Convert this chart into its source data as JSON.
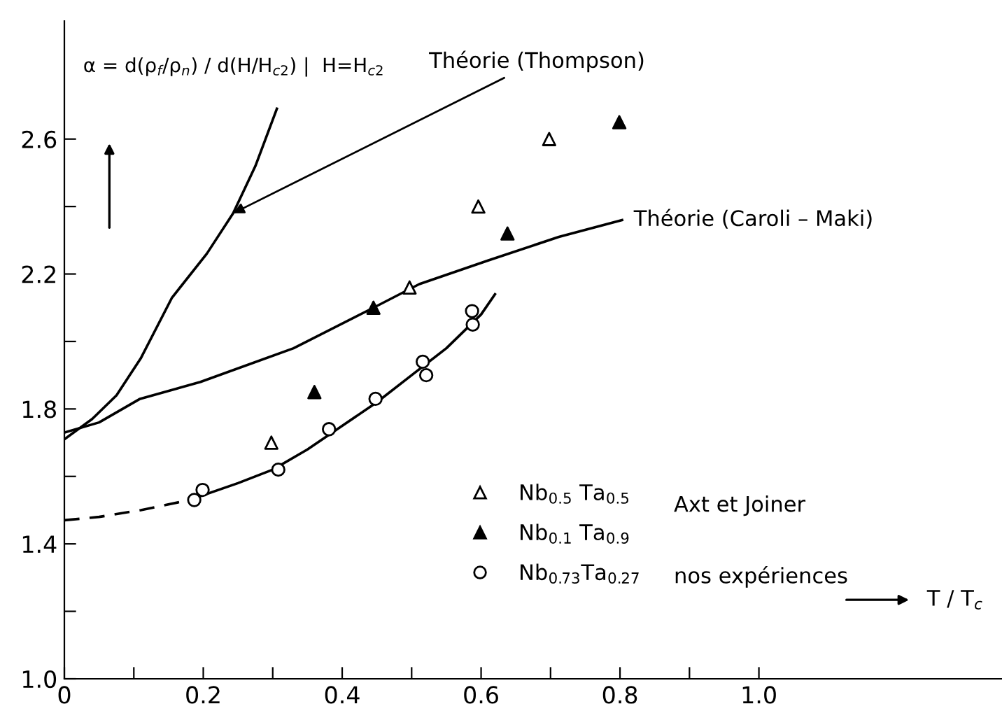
{
  "chart_data": {
    "type": "scatter",
    "ylabel": "α = d(ρ$_{f}$/ρ$_{n}$) / d(H/H$_{c2}$) |  H=H$_{c2}$",
    "xlabel": "T / T$_{c}$",
    "xlim": [
      0,
      1.35
    ],
    "ylim": [
      1.0,
      2.95
    ],
    "xticks": [
      0,
      {
        "value": 0.1,
        "label": null
      },
      {
        "value": 0.2,
        "label": "0.2"
      },
      {
        "value": 0.3,
        "label": null
      },
      {
        "value": 0.4,
        "label": "0.4"
      },
      {
        "value": 0.5,
        "label": null
      },
      {
        "value": 0.6,
        "label": "0.6"
      },
      {
        "value": 0.7,
        "label": null
      },
      {
        "value": 0.8,
        "label": "0.8"
      },
      {
        "value": 0.9,
        "label": null
      },
      {
        "value": 1.0,
        "label": "1.0"
      }
    ],
    "yticks": [
      {
        "value": 1.0,
        "label": "1.0"
      },
      {
        "value": 1.2,
        "label": null
      },
      {
        "value": 1.4,
        "label": "1.4"
      },
      {
        "value": 1.6,
        "label": null
      },
      {
        "value": 1.8,
        "label": "1.8"
      },
      {
        "value": 2.0,
        "label": null
      },
      {
        "value": 2.2,
        "label": "2.2"
      },
      {
        "value": 2.4,
        "label": null
      },
      {
        "value": 2.6,
        "label": "2.6"
      }
    ],
    "grid": false,
    "legend": "right",
    "series": [
      {
        "type": "line",
        "color": "#000000",
        "line_style": "solid",
        "marker": "none",
        "x": [
          0,
          0.04,
          0.075,
          0.11,
          0.155,
          0.205,
          0.243,
          0.275,
          0.306
        ],
        "values": [
          1.71,
          1.77,
          1.84,
          1.95,
          2.13,
          2.26,
          2.38,
          2.52,
          2.69
        ]
      },
      {
        "type": "line",
        "color": "#000000",
        "line_style": "solid",
        "marker": "none",
        "x": [
          0,
          0.05,
          0.109,
          0.196,
          0.33,
          0.445,
          0.511,
          0.61,
          0.712,
          0.803
        ],
        "values": [
          1.73,
          1.76,
          1.83,
          1.88,
          1.98,
          2.1,
          2.17,
          2.24,
          2.31,
          2.36
        ]
      },
      {
        "type": "line",
        "color": "#000000",
        "line_style": "dashed",
        "marker": "none",
        "x": [
          0,
          0.05,
          0.11,
          0.18
        ],
        "values": [
          1.47,
          1.48,
          1.5,
          1.53
        ]
      },
      {
        "type": "line",
        "color": "#000000",
        "line_style": "solid",
        "marker": "none",
        "x": [
          0.18,
          0.25,
          0.3,
          0.35,
          0.4,
          0.45,
          0.5,
          0.55,
          0.6,
          0.62
        ],
        "values": [
          1.53,
          1.58,
          1.62,
          1.68,
          1.75,
          1.82,
          1.9,
          1.98,
          2.08,
          2.14
        ]
      },
      {
        "name": "Nb$_{0.5}$ Ta$_{0.5}$",
        "marker": "triangle",
        "color": "#ffffff",
        "x": [
          0.298,
          0.497,
          0.596,
          0.698
        ],
        "values": [
          1.7,
          2.16,
          2.4,
          2.6
        ]
      },
      {
        "name": "Nb$_{0.1}$ Ta$_{0.9}$",
        "marker": "triangle",
        "color": "#000000",
        "x": [
          0.36,
          0.445,
          0.638,
          0.799
        ],
        "values": [
          1.85,
          2.1,
          2.32,
          2.65
        ]
      },
      {
        "name": "Nb$_{0.73}$Ta$_{0.27}$",
        "marker": "circle",
        "color": "#ffffff",
        "x": [
          0.187,
          0.199,
          0.308,
          0.381,
          0.448,
          0.516,
          0.521,
          0.587,
          0.588
        ],
        "values": [
          1.53,
          1.56,
          1.62,
          1.74,
          1.83,
          1.94,
          1.9,
          2.09,
          2.05
        ]
      }
    ],
    "annotations": [
      {
        "text": "Théorie (Thompson)",
        "x": 0.243,
        "y": 2.38
      },
      {
        "text": "Théorie (Caroli – Maki)",
        "x": 0.803,
        "y": 2.36
      },
      "Axt et Joiner",
      "nos expériences"
    ]
  }
}
